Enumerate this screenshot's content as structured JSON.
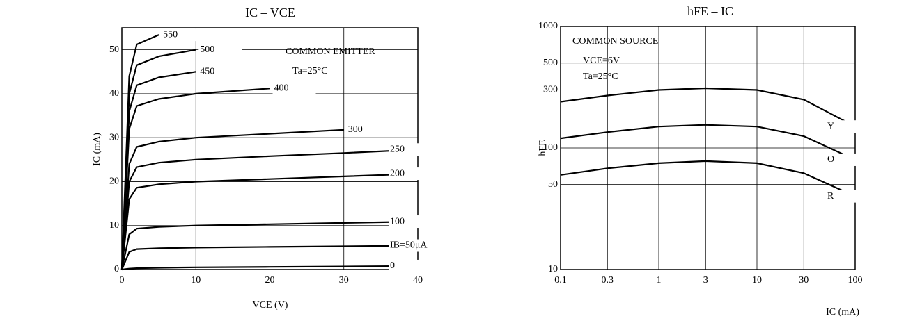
{
  "chart_data": [
    {
      "type": "line",
      "title": "IC – VCE",
      "x_label": "VCE (V)",
      "y_label": "IC (mA)",
      "annotations": [
        "COMMON EMITTER",
        "Ta=25°C"
      ],
      "x": [
        0,
        1,
        2,
        5,
        10,
        20,
        30,
        40
      ],
      "xlim": [
        0,
        40
      ],
      "xticks": [
        0,
        10,
        20,
        30,
        40
      ],
      "ylim": [
        0,
        55
      ],
      "yticks": [
        0,
        10,
        20,
        30,
        40,
        50
      ],
      "grid": true,
      "color": "#000000",
      "series": [
        {
          "name": "0",
          "color": "#000000",
          "values": [
            0,
            0.2,
            0.3,
            0.4,
            0.5,
            0.6,
            0.7,
            0.8
          ]
        },
        {
          "name": "IB=50μA",
          "color": "#000000",
          "values": [
            0,
            4,
            4.65,
            4.85,
            5,
            5.15,
            5.3,
            5.45
          ]
        },
        {
          "name": "100",
          "color": "#000000",
          "values": [
            0,
            8,
            9.3,
            9.7,
            10,
            10.3,
            10.6,
            10.9
          ]
        },
        {
          "name": "200",
          "color": "#000000",
          "values": [
            0,
            16,
            18.6,
            19.4,
            20,
            20.6,
            21.2,
            21.8
          ]
        },
        {
          "name": "250",
          "color": "#000000",
          "values": [
            0,
            20,
            23.3,
            24.3,
            25,
            25.8,
            26.5,
            27.3
          ]
        },
        {
          "name": "300",
          "color": "#000000",
          "values": [
            0,
            24,
            27.9,
            29.1,
            30,
            30.9,
            31.8,
            null
          ]
        },
        {
          "name": "400",
          "color": "#000000",
          "values": [
            0,
            32,
            37.2,
            38.8,
            40,
            41.2,
            null,
            null
          ]
        },
        {
          "name": "450",
          "color": "#000000",
          "values": [
            0,
            36,
            41.9,
            43.7,
            45,
            null,
            null,
            null
          ]
        },
        {
          "name": "500",
          "color": "#000000",
          "values": [
            0,
            40,
            46.5,
            48.5,
            50,
            null,
            null,
            null
          ]
        },
        {
          "name": "550",
          "color": "#000000",
          "values": [
            0,
            44,
            51.2,
            53.4,
            null,
            null,
            null,
            null
          ]
        }
      ]
    },
    {
      "type": "line",
      "title": "hFE – IC",
      "x_label": "IC (mA)",
      "y_label": "hFE",
      "annotations": [
        "COMMON SOURCE",
        "VCE=6V",
        "Ta=25°C"
      ],
      "x": [
        0.1,
        0.3,
        1,
        3,
        10,
        30,
        100
      ],
      "xlim": [
        0.1,
        100
      ],
      "xticks": [
        0.1,
        0.3,
        1,
        3,
        10,
        30,
        100
      ],
      "xlog": true,
      "ylim": [
        10,
        1000
      ],
      "yticks": [
        10,
        50,
        100,
        300,
        500,
        1000
      ],
      "ylog": true,
      "grid": true,
      "series": [
        {
          "name": "Y",
          "color": "#000000",
          "values": [
            240,
            270,
            300,
            310,
            300,
            250,
            150
          ]
        },
        {
          "name": "O",
          "color": "#000000",
          "values": [
            120,
            135,
            150,
            155,
            150,
            125,
            80
          ]
        },
        {
          "name": "R",
          "color": "#000000",
          "values": [
            60,
            68,
            75,
            78,
            75,
            62,
            40
          ]
        }
      ]
    }
  ]
}
